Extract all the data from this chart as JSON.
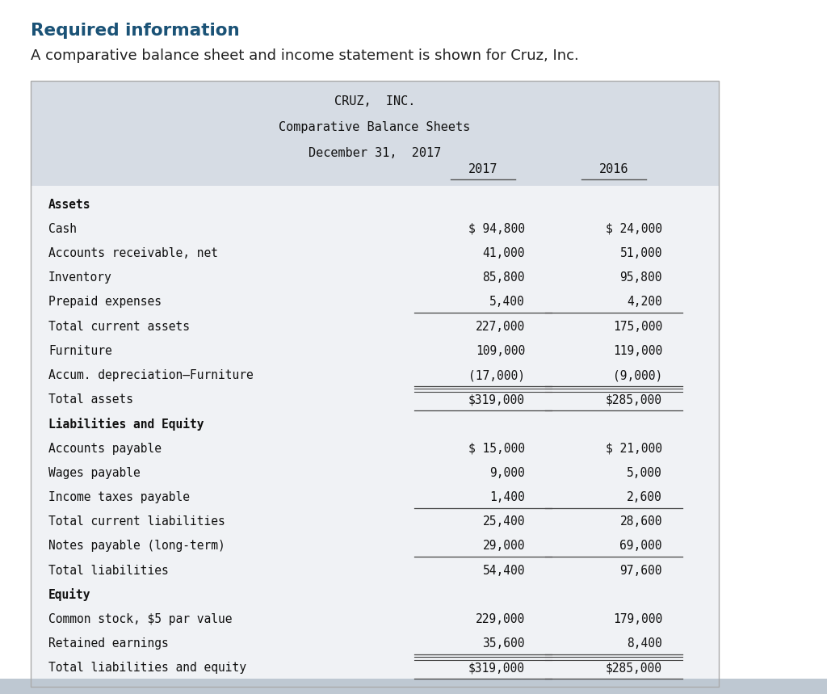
{
  "page_bg": "#ffffff",
  "header_color": "#1a5276",
  "header_text": "Required information",
  "subtitle_text": "A comparative balance sheet and income statement is shown for Cruz, Inc.",
  "table_header_bg": "#d6dce4",
  "table_body_bg": "#f0f2f5",
  "table_border": "#aaaaaa",
  "title_lines": [
    "CRUZ,  INC.",
    "Comparative Balance Sheets",
    "December 31,  2017"
  ],
  "col_headers": [
    "2017",
    "2016"
  ],
  "bottom_bar_color": "#bec8d2",
  "rows": [
    {
      "label": "Assets",
      "v2017": "",
      "v2016": "",
      "bold": true,
      "underline": false,
      "double_top": false,
      "indent": false
    },
    {
      "label": "Cash",
      "v2017": "$ 94,800",
      "v2016": "$ 24,000",
      "bold": false,
      "underline": false,
      "double_top": false,
      "indent": true
    },
    {
      "label": "Accounts receivable, net",
      "v2017": "41,000",
      "v2016": "51,000",
      "bold": false,
      "underline": false,
      "double_top": false,
      "indent": true
    },
    {
      "label": "Inventory",
      "v2017": "85,800",
      "v2016": "95,800",
      "bold": false,
      "underline": false,
      "double_top": false,
      "indent": true
    },
    {
      "label": "Prepaid expenses",
      "v2017": "5,400",
      "v2016": "4,200",
      "bold": false,
      "underline": true,
      "double_top": false,
      "indent": true
    },
    {
      "label": "Total current assets",
      "v2017": "227,000",
      "v2016": "175,000",
      "bold": false,
      "underline": false,
      "double_top": false,
      "indent": false
    },
    {
      "label": "Furniture",
      "v2017": "109,000",
      "v2016": "119,000",
      "bold": false,
      "underline": false,
      "double_top": false,
      "indent": true
    },
    {
      "label": "Accum. depreciation–Furniture",
      "v2017": "(17,000)",
      "v2016": "(9,000)",
      "bold": false,
      "underline": true,
      "double_top": false,
      "indent": true
    },
    {
      "label": "Total assets",
      "v2017": "$319,000",
      "v2016": "$285,000",
      "bold": false,
      "underline": true,
      "double_top": true,
      "indent": false
    },
    {
      "label": "Liabilities and Equity",
      "v2017": "",
      "v2016": "",
      "bold": true,
      "underline": false,
      "double_top": false,
      "indent": false
    },
    {
      "label": "Accounts payable",
      "v2017": "$ 15,000",
      "v2016": "$ 21,000",
      "bold": false,
      "underline": false,
      "double_top": false,
      "indent": true
    },
    {
      "label": "Wages payable",
      "v2017": "9,000",
      "v2016": "5,000",
      "bold": false,
      "underline": false,
      "double_top": false,
      "indent": true
    },
    {
      "label": "Income taxes payable",
      "v2017": "1,400",
      "v2016": "2,600",
      "bold": false,
      "underline": true,
      "double_top": false,
      "indent": true
    },
    {
      "label": "Total current liabilities",
      "v2017": "25,400",
      "v2016": "28,600",
      "bold": false,
      "underline": false,
      "double_top": false,
      "indent": false
    },
    {
      "label": "Notes payable (long-term)",
      "v2017": "29,000",
      "v2016": "69,000",
      "bold": false,
      "underline": true,
      "double_top": false,
      "indent": true
    },
    {
      "label": "Total liabilities",
      "v2017": "54,400",
      "v2016": "97,600",
      "bold": false,
      "underline": false,
      "double_top": false,
      "indent": false
    },
    {
      "label": "Equity",
      "v2017": "",
      "v2016": "",
      "bold": true,
      "underline": false,
      "double_top": false,
      "indent": false
    },
    {
      "label": "Common stock, $5 par value",
      "v2017": "229,000",
      "v2016": "179,000",
      "bold": false,
      "underline": false,
      "double_top": false,
      "indent": true
    },
    {
      "label": "Retained earnings",
      "v2017": "35,600",
      "v2016": "8,400",
      "bold": false,
      "underline": true,
      "double_top": false,
      "indent": true
    },
    {
      "label": "Total liabilities and equity",
      "v2017": "$319,000",
      "v2016": "$285,000",
      "bold": false,
      "underline": true,
      "double_top": true,
      "indent": false
    }
  ]
}
